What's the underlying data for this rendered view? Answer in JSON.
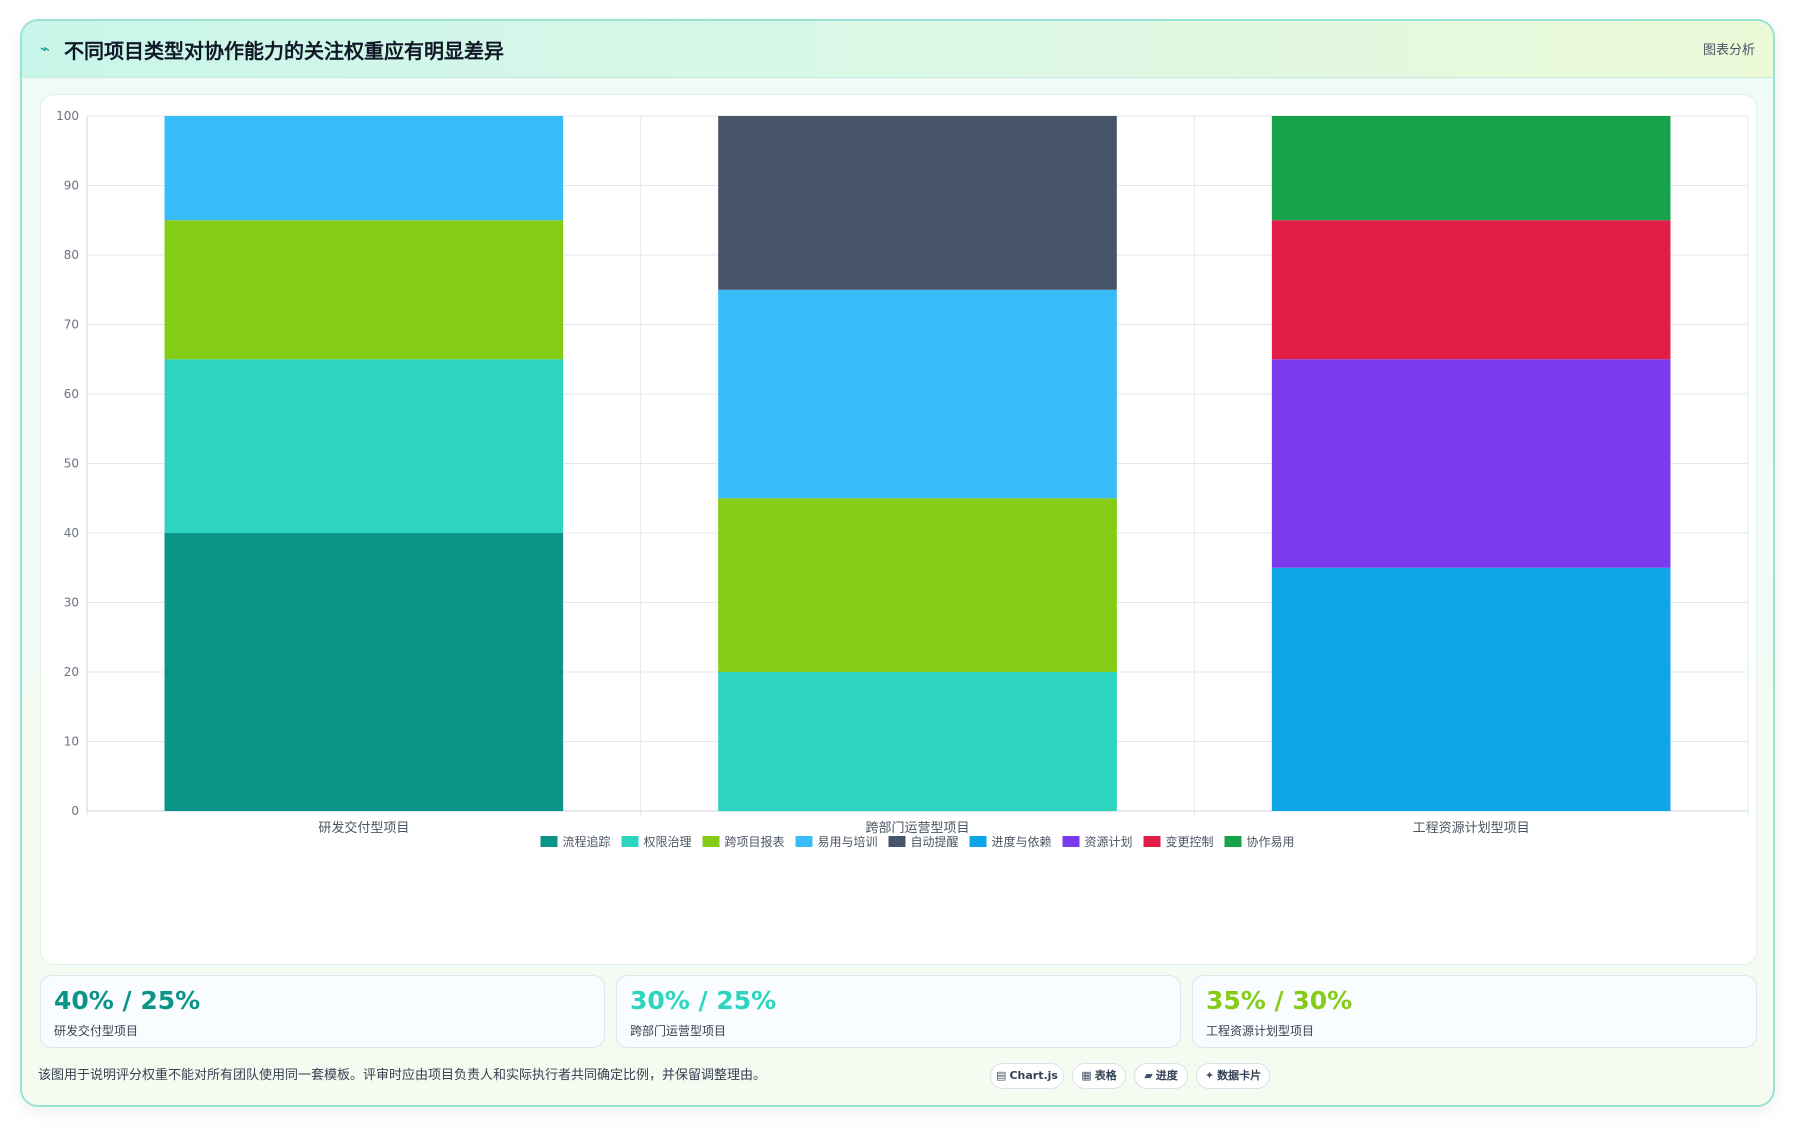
{
  "header": {
    "title": "不同项目类型对协作能力的关注权重应有明显差异",
    "tag": "图表分析"
  },
  "chart_data": {
    "type": "bar",
    "stacked": true,
    "categories": [
      "研发交付型项目",
      "跨部门运营型项目",
      "工程资源计划型项目"
    ],
    "ylim": [
      0,
      100
    ],
    "yticks": [
      0,
      10,
      20,
      30,
      40,
      50,
      60,
      70,
      80,
      90,
      100
    ],
    "grid": true,
    "legend_position": "bottom",
    "series": [
      {
        "name": "流程追踪",
        "color": "#0d9488",
        "values": [
          40,
          0,
          0
        ]
      },
      {
        "name": "权限治理",
        "color": "#2dd4bf",
        "values": [
          25,
          20,
          0
        ]
      },
      {
        "name": "跨项目报表",
        "color": "#84cc16",
        "values": [
          20,
          25,
          0
        ]
      },
      {
        "name": "易用与培训",
        "color": "#38bdf8",
        "values": [
          15,
          30,
          0
        ]
      },
      {
        "name": "自动提醒",
        "color": "#475569",
        "values": [
          0,
          25,
          0
        ]
      },
      {
        "name": "进度与依赖",
        "color": "#0ea5e9",
        "values": [
          0,
          0,
          35
        ]
      },
      {
        "name": "资源计划",
        "color": "#7c3aed",
        "values": [
          0,
          0,
          30
        ]
      },
      {
        "name": "变更控制",
        "color": "#e11d48",
        "values": [
          0,
          0,
          20
        ]
      },
      {
        "name": "协作易用",
        "color": "#16a34a",
        "values": [
          0,
          0,
          15
        ]
      }
    ]
  },
  "stats": [
    {
      "value": "40% / 25%",
      "label": "研发交付型项目",
      "color": "#0d9488"
    },
    {
      "value": "30% / 25%",
      "label": "跨部门运营型项目",
      "color": "#2dd4bf"
    },
    {
      "value": "35% / 30%",
      "label": "工程资源计划型项目",
      "color": "#84cc16"
    }
  ],
  "footer": {
    "text": "该图用于说明评分权重不能对所有团队使用同一套模板。评审时应由项目负责人和实际执行者共同确定比例，并保留调整理由。",
    "chips": [
      {
        "glyph": "▤",
        "label": "Chart.js"
      },
      {
        "glyph": "▦",
        "label": "表格"
      },
      {
        "glyph": "▰",
        "label": "进度"
      },
      {
        "glyph": "✦",
        "label": "数据卡片"
      }
    ]
  }
}
